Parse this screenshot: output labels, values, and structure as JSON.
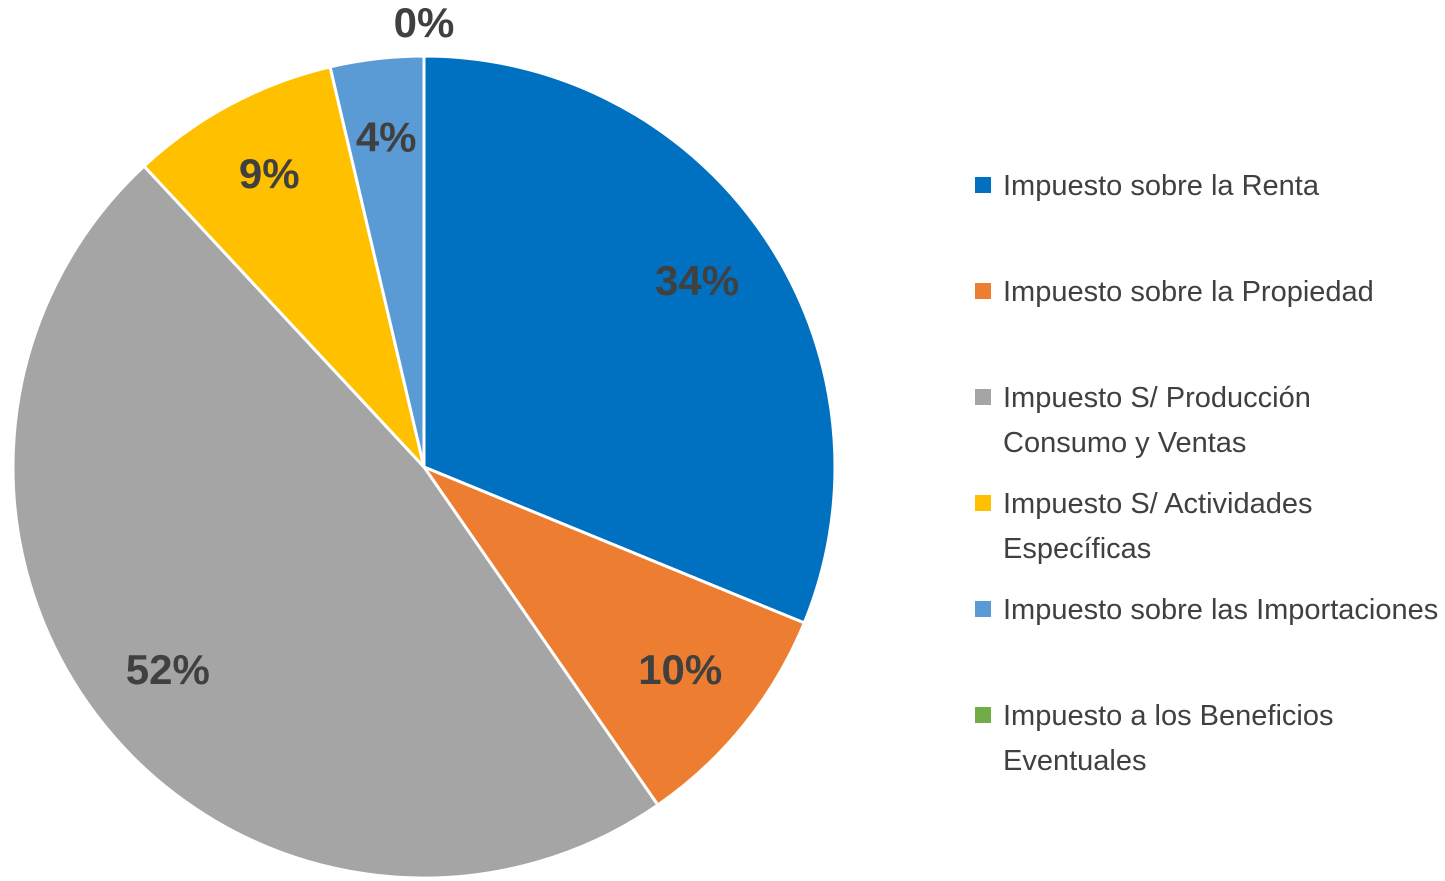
{
  "chart_data": {
    "type": "pie",
    "categories": [
      "Impuesto sobre la Renta",
      "Impuesto sobre la Propiedad",
      "Impuesto S/ Producción Consumo y Ventas",
      "Impuesto S/ Actividades Específicas",
      "Impuesto sobre las Importaciones",
      "Impuesto a los Beneficios Eventuales"
    ],
    "values": [
      34,
      10,
      52,
      9,
      4,
      0
    ],
    "value_labels": [
      "34%",
      "10%",
      "52%",
      "9%",
      "4%",
      "0%"
    ],
    "colors": [
      "#0070c0",
      "#ed7d31",
      "#a5a5a5",
      "#ffc000",
      "#5b9bd5",
      "#70ad47"
    ],
    "legend": "right"
  }
}
